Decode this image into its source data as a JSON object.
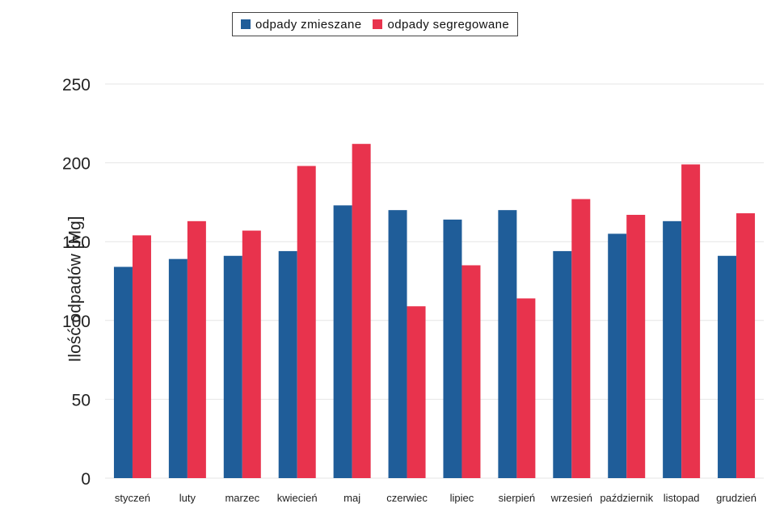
{
  "chart_data": {
    "type": "bar",
    "categories": [
      "styczeń",
      "luty",
      "marzec",
      "kwiecień",
      "maj",
      "czerwiec",
      "lipiec",
      "sierpień",
      "wrzesień",
      "październik",
      "listopad",
      "grudzień"
    ],
    "series": [
      {
        "name": "odpady zmieszane",
        "color": "#1f5d99",
        "values": [
          134,
          139,
          141,
          144,
          173,
          170,
          164,
          170,
          144,
          155,
          163,
          141
        ]
      },
      {
        "name": "odpady segregowane",
        "color": "#e8334d",
        "values": [
          154,
          163,
          157,
          198,
          212,
          109,
          135,
          114,
          177,
          167,
          199,
          168
        ]
      }
    ],
    "ylabel": "Ilość odpadów [Mg]",
    "xlabel": "",
    "ylim": [
      0,
      250
    ],
    "yticks": [
      0,
      50,
      100,
      150,
      200,
      250
    ],
    "grid": true,
    "legend_position": "top-center"
  }
}
